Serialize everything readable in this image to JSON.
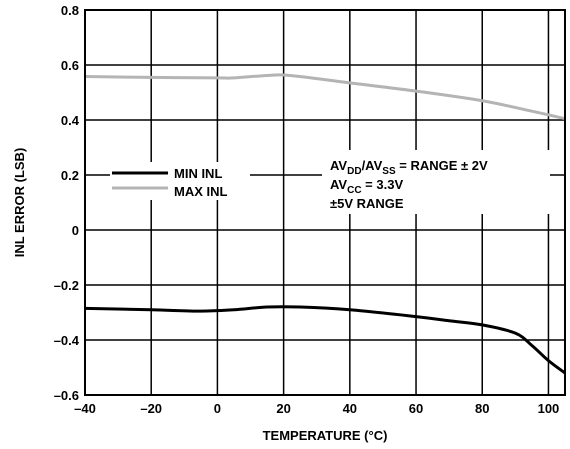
{
  "chart_data": {
    "type": "line",
    "title": "",
    "xlabel": "TEMPERATURE (°C)",
    "ylabel": "INL ERROR (LSB)",
    "xlim": [
      -40,
      105
    ],
    "ylim": [
      -0.6,
      0.8
    ],
    "x_ticks": [
      -40,
      -20,
      0,
      20,
      40,
      60,
      80,
      100
    ],
    "x_tick_labels": [
      "–40",
      "–20",
      "0",
      "20",
      "40",
      "60",
      "80",
      "100"
    ],
    "y_ticks": [
      -0.6,
      -0.4,
      -0.2,
      0,
      0.2,
      0.4,
      0.6,
      0.8
    ],
    "y_tick_labels": [
      "–0.6",
      "–0.4",
      "–0.2",
      "0",
      "0.2",
      "0.4",
      "0.6",
      "0.8"
    ],
    "grid": true,
    "legend_position": "left",
    "series": [
      {
        "name": "MIN INL",
        "color": "#000000",
        "points": [
          [
            -40,
            -0.285
          ],
          [
            -20,
            -0.29
          ],
          [
            -5,
            -0.295
          ],
          [
            5,
            -0.29
          ],
          [
            15,
            -0.28
          ],
          [
            25,
            -0.28
          ],
          [
            40,
            -0.29
          ],
          [
            60,
            -0.315
          ],
          [
            70,
            -0.33
          ],
          [
            80,
            -0.345
          ],
          [
            90,
            -0.375
          ],
          [
            95,
            -0.42
          ],
          [
            100,
            -0.475
          ],
          [
            105,
            -0.52
          ]
        ]
      },
      {
        "name": "MAX INL",
        "color": "#b4b4b4",
        "points": [
          [
            -40,
            0.558
          ],
          [
            -20,
            0.555
          ],
          [
            0,
            0.553
          ],
          [
            5,
            0.553
          ],
          [
            15,
            0.562
          ],
          [
            22,
            0.562
          ],
          [
            40,
            0.535
          ],
          [
            60,
            0.505
          ],
          [
            80,
            0.47
          ],
          [
            95,
            0.432
          ],
          [
            105,
            0.405
          ]
        ]
      }
    ],
    "annotation": {
      "line1": {
        "base1": "AV",
        "sub1": "DD",
        "base2": "/AV",
        "sub2": "SS",
        "rest": " = RANGE ± 2V"
      },
      "line2": {
        "base": "AV",
        "sub": "CC",
        "rest": " = 3.3V"
      },
      "line3": "±5V RANGE"
    }
  }
}
